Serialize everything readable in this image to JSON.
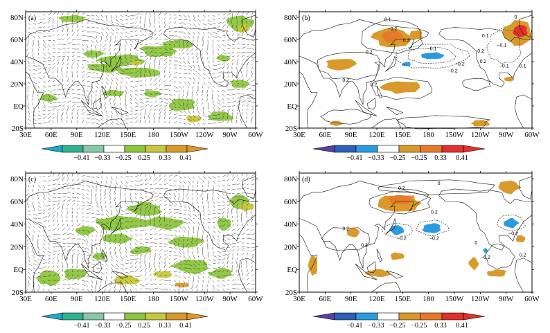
{
  "figure": {
    "colors": {
      "cyan_strong": "#1fa7c9",
      "teal_mid": "#2db38b",
      "green": "#8cc63f",
      "yellowgreen": "#c6c83b",
      "orange": "#d99a2b",
      "purple": "#5b3fa3",
      "blue_dark": "#2c5fb8",
      "blue": "#2b9be0",
      "orange_light": "#d99a2b",
      "orange_strong": "#e67a2a",
      "red": "#e0312a",
      "land": "#111111",
      "contour": "#333333"
    }
  },
  "chart_data": [
    {
      "id": "a",
      "panel_label": "(a)",
      "type": "vector-shaded-map",
      "x_ticks": [
        "30E",
        "60E",
        "90E",
        "120E",
        "150E",
        "180",
        "150W",
        "120W",
        "90W",
        "60W"
      ],
      "y_ticks": [
        "80N",
        "60N",
        "40N",
        "20N",
        "EQ",
        "20S"
      ],
      "colorbar": {
        "labels": [
          "−0.41",
          "−0.33",
          "−0.25",
          "0.25",
          "0.33",
          "0.41"
        ],
        "colors": [
          "#1fa7c9",
          "#2db38b",
          "#88c7a7",
          "#ffffff",
          "#8cc63f",
          "#c6c83b",
          "#d99a2b"
        ]
      }
    },
    {
      "id": "b",
      "panel_label": "(b)",
      "type": "contour-shaded-map",
      "x_ticks": [
        "30E",
        "60E",
        "90E",
        "120E",
        "150E",
        "180",
        "150W",
        "120W",
        "90W",
        "60W"
      ],
      "y_ticks": [
        "80N",
        "60N",
        "40N",
        "20N",
        "EQ",
        "20S"
      ],
      "contour_labels": [
        "0.1",
        "−0.2",
        "0.3",
        "0.2",
        "−0.1",
        "−0.2",
        "0.2",
        "0.2",
        "−0.1",
        "0.1",
        "−0.2",
        "−0.1",
        "0",
        "0.2",
        "0.2",
        "0.1"
      ],
      "colorbar": {
        "labels": [
          "−0.41",
          "−0.33",
          "−0.25",
          "−0.25",
          "0.33",
          "0.41"
        ],
        "colors": [
          "#5b3fa3",
          "#2c5fb8",
          "#2b9be0",
          "#ffffff",
          "#d99a2b",
          "#e67a2a",
          "#e0312a"
        ]
      }
    },
    {
      "id": "c",
      "panel_label": "(c)",
      "type": "vector-shaded-map",
      "x_ticks": [
        "30E",
        "60E",
        "90E",
        "120E",
        "150E",
        "180",
        "150W",
        "120W",
        "90W",
        "60W"
      ],
      "y_ticks": [
        "80N",
        "60N",
        "40N",
        "20N",
        "EQ",
        "20S"
      ],
      "colorbar": {
        "labels": [
          "−0.41",
          "−0.33",
          "−0.25",
          "0.25",
          "0.33",
          "0.41"
        ],
        "colors": [
          "#1fa7c9",
          "#2db38b",
          "#88c7a7",
          "#ffffff",
          "#8cc63f",
          "#c6c83b",
          "#d99a2b"
        ]
      }
    },
    {
      "id": "d",
      "panel_label": "(d)",
      "type": "contour-shaded-map",
      "x_ticks": [
        "30E",
        "60E",
        "90E",
        "120E",
        "150E",
        "180",
        "150W",
        "120W",
        "90W",
        "60W"
      ],
      "y_ticks": [
        "80N",
        "60N",
        "40N",
        "20N",
        "EQ",
        "20S"
      ],
      "contour_labels": [
        "0",
        "0.2",
        "0.2",
        "0.2",
        "−0.2",
        "−0.2",
        "−0.2",
        "0.2",
        "0",
        "0.2",
        "−0.2"
      ],
      "colorbar": {
        "labels": [
          "−0.41",
          "−0.33",
          "−0.25",
          "−0.25",
          "0.33",
          "0.41"
        ],
        "colors": [
          "#5b3fa3",
          "#2c5fb8",
          "#2b9be0",
          "#ffffff",
          "#d99a2b",
          "#e67a2a",
          "#e0312a"
        ]
      }
    }
  ]
}
